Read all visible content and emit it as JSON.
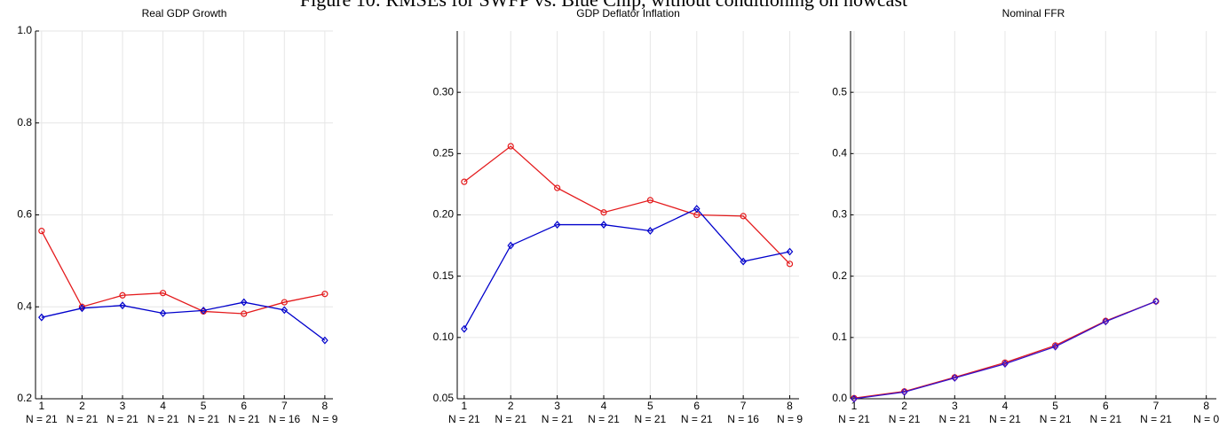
{
  "figure_title": "Figure 10: RMSEs for SWFP vs. Blue Chip, without conditioning on nowcast",
  "chart_data": [
    {
      "type": "line",
      "title": "Real GDP Growth",
      "x": [
        1,
        2,
        3,
        4,
        5,
        6,
        7,
        8
      ],
      "xlim": [
        0.85,
        8.2
      ],
      "xticks": [
        1,
        2,
        3,
        4,
        5,
        6,
        7,
        8
      ],
      "n_labels": [
        "N = 21",
        "N = 21",
        "N = 21",
        "N = 21",
        "N = 21",
        "N = 21",
        "N = 16",
        "N = 9"
      ],
      "ylim": [
        0.2,
        1.0
      ],
      "yticks": [
        0.2,
        0.4,
        0.6,
        0.8,
        {
          "value": 1.0,
          "label": "1.0"
        }
      ],
      "grid": true,
      "series": [
        {
          "color": "#e41a1c",
          "marker": "circle",
          "values": [
            0.565,
            0.4,
            0.425,
            0.43,
            0.39,
            0.385,
            0.41,
            0.428
          ]
        },
        {
          "color": "#0000cc",
          "marker": "diamond",
          "values": [
            0.377,
            0.397,
            0.403,
            0.386,
            0.392,
            0.41,
            0.393,
            0.327
          ]
        }
      ]
    },
    {
      "type": "line",
      "title": "GDP Deflator Inflation",
      "x": [
        1,
        2,
        3,
        4,
        5,
        6,
        7,
        8
      ],
      "xlim": [
        0.85,
        8.2
      ],
      "xticks": [
        1,
        2,
        3,
        4,
        5,
        6,
        7,
        8
      ],
      "n_labels": [
        "N = 21",
        "N = 21",
        "N = 21",
        "N = 21",
        "N = 21",
        "N = 21",
        "N = 16",
        "N = 9"
      ],
      "ylim": [
        0.05,
        0.35
      ],
      "yticks": [
        0.05,
        {
          "value": 0.1,
          "label": "0.10"
        },
        0.15,
        {
          "value": 0.2,
          "label": "0.20"
        },
        0.25,
        {
          "value": 0.3,
          "label": "0.30"
        }
      ],
      "grid": true,
      "series": [
        {
          "color": "#e41a1c",
          "marker": "circle",
          "values": [
            0.227,
            0.256,
            0.222,
            0.202,
            0.212,
            0.2,
            0.199,
            0.16
          ]
        },
        {
          "color": "#0000cc",
          "marker": "diamond",
          "values": [
            0.107,
            0.175,
            0.192,
            0.192,
            0.187,
            0.205,
            0.162,
            0.17
          ]
        }
      ]
    },
    {
      "type": "line",
      "title": "Nominal FFR",
      "x": [
        1,
        2,
        3,
        4,
        5,
        6,
        7,
        8
      ],
      "xlim": [
        0.93,
        8.2
      ],
      "xticks": [
        1,
        2,
        3,
        4,
        5,
        6,
        7,
        8
      ],
      "n_labels": [
        "N = 21",
        "N = 21",
        "N = 21",
        "N = 21",
        "N = 21",
        "N = 21",
        "N = 21",
        "N = 0"
      ],
      "ylim": [
        0.0,
        0.6
      ],
      "yticks": [
        {
          "value": 0.0,
          "label": "0.0"
        },
        0.1,
        0.2,
        0.3,
        0.4,
        0.5
      ],
      "grid": true,
      "series": [
        {
          "color": "#e41a1c",
          "marker": "circle",
          "values": [
            0.001,
            0.012,
            0.035,
            0.059,
            0.087,
            0.127,
            0.159,
            null
          ]
        },
        {
          "color": "#3311cc",
          "marker": "diamond",
          "values": [
            0.0,
            0.011,
            0.034,
            0.057,
            0.085,
            0.126,
            0.159,
            null
          ]
        }
      ]
    }
  ]
}
